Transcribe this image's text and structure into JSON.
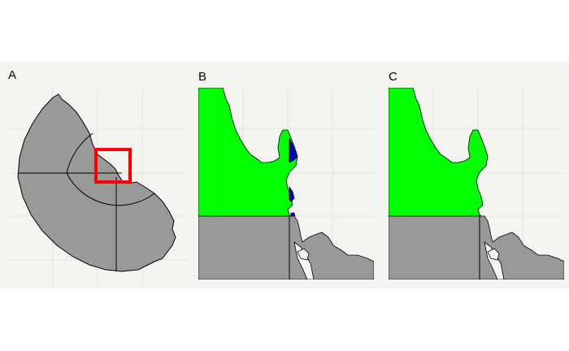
{
  "panels": [
    {
      "label": "A"
    },
    {
      "label": "B"
    },
    {
      "label": "C"
    }
  ],
  "colors": {
    "background": "#f4f4f1",
    "grid": "#e4e4e0",
    "land": "#999999",
    "region_green": "#00ff00",
    "region_blue": "#0000cc",
    "highlight_box": "#ff0000"
  }
}
